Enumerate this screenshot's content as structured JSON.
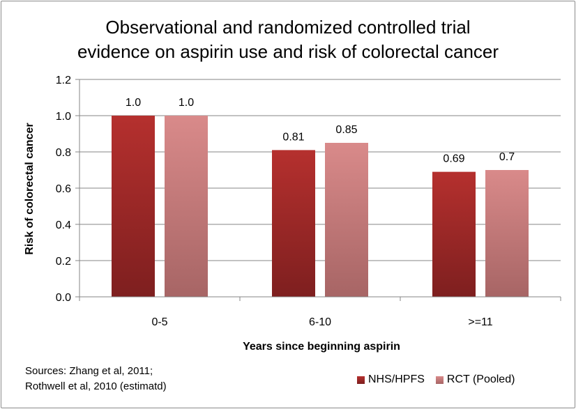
{
  "chart_data": {
    "type": "bar",
    "title_lines": [
      "Observational and randomized controlled trial",
      "evidence on aspirin use and risk of colorectal cancer"
    ],
    "xlabel": "Years since beginning aspirin",
    "ylabel": "Risk of colorectal cancer",
    "categories": [
      "0-5",
      "6-10",
      ">=11"
    ],
    "ylim": [
      0,
      1.2
    ],
    "yticks": [
      "0.0",
      "0.2",
      "0.4",
      "0.6",
      "0.8",
      "1.0",
      "1.2"
    ],
    "grid": true,
    "legend_position": "bottom-right",
    "series": [
      {
        "name": "NHS/HPFS",
        "values": [
          1.0,
          0.81,
          0.69
        ],
        "labels": [
          "1.0",
          "0.81",
          "0.69"
        ],
        "color": "#b5302e",
        "color_dark": "#7e1f1f"
      },
      {
        "name": "RCT (Pooled)",
        "values": [
          1.0,
          0.85,
          0.7
        ],
        "labels": [
          "1.0",
          "0.85",
          "0.7"
        ],
        "color": "#d98a8a",
        "color_dark": "#a76565"
      }
    ]
  },
  "source_note": {
    "line1": "Sources: Zhang et al, 2011;",
    "line2": "Rothwell et al, 2010 (estimatd)"
  }
}
